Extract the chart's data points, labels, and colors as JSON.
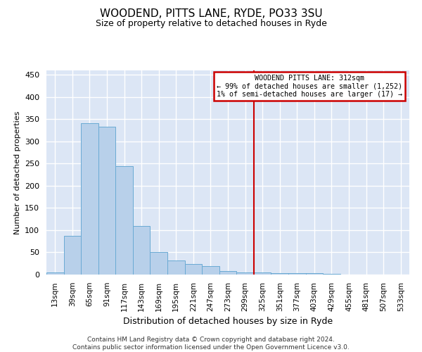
{
  "title": "WOODEND, PITTS LANE, RYDE, PO33 3SU",
  "subtitle": "Size of property relative to detached houses in Ryde",
  "xlabel": "Distribution of detached houses by size in Ryde",
  "ylabel": "Number of detached properties",
  "footer_line1": "Contains HM Land Registry data © Crown copyright and database right 2024.",
  "footer_line2": "Contains public sector information licensed under the Open Government Licence v3.0.",
  "categories": [
    "13sqm",
    "39sqm",
    "65sqm",
    "91sqm",
    "117sqm",
    "143sqm",
    "169sqm",
    "195sqm",
    "221sqm",
    "247sqm",
    "273sqm",
    "299sqm",
    "325sqm",
    "351sqm",
    "377sqm",
    "403sqm",
    "429sqm",
    "455sqm",
    "481sqm",
    "507sqm",
    "533sqm"
  ],
  "values": [
    5,
    88,
    341,
    333,
    245,
    110,
    50,
    31,
    24,
    19,
    8,
    4,
    4,
    3,
    3,
    3,
    1,
    0,
    0,
    0,
    0
  ],
  "bar_color": "#b8d0ea",
  "bar_edge_color": "#6aaad4",
  "bg_color": "#dce6f5",
  "grid_color": "#ffffff",
  "annotation_line1": "WOODEND PITTS LANE: 312sqm",
  "annotation_line2": "← 99% of detached houses are smaller (1,252)",
  "annotation_line3": "1% of semi-detached houses are larger (17) →",
  "annotation_box_color": "#ffffff",
  "annotation_border_color": "#cc0000",
  "vline_color": "#cc0000",
  "vline_x_index": 11.5,
  "ylim": [
    0,
    460
  ],
  "yticks": [
    0,
    50,
    100,
    150,
    200,
    250,
    300,
    350,
    400,
    450
  ],
  "title_fontsize": 11,
  "subtitle_fontsize": 9,
  "ylabel_fontsize": 8,
  "xlabel_fontsize": 9,
  "footer_fontsize": 6.5,
  "tick_fontsize": 7.5
}
